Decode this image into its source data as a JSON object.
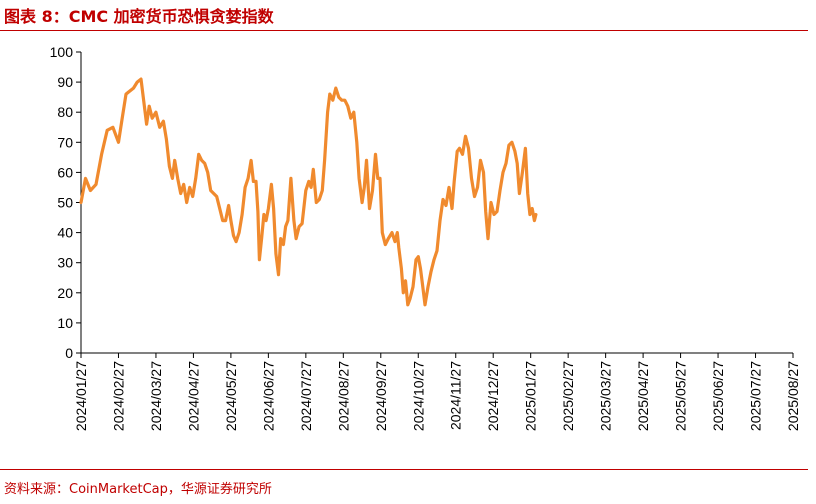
{
  "figure": {
    "title": "图表 8：CMC 加密货币恐惧贪婪指数",
    "source": "资料来源：CoinMarketCap，华源证券研究所"
  },
  "chart_data": {
    "type": "line",
    "title": "",
    "xlabel": "",
    "ylabel": "",
    "ylim": [
      0,
      100
    ],
    "yticks": [
      0,
      10,
      20,
      30,
      40,
      50,
      60,
      70,
      80,
      90,
      100
    ],
    "categories": [
      "2024/01/27",
      "2024/02/27",
      "2024/03/27",
      "2024/04/27",
      "2024/05/27",
      "2024/06/27",
      "2024/07/27",
      "2024/08/27",
      "2024/09/27",
      "2024/10/27",
      "2024/11/27",
      "2024/12/27",
      "2025/01/27",
      "2025/02/27",
      "2025/03/27",
      "2025/04/27",
      "2025/05/27",
      "2025/06/27",
      "2025/07/27",
      "2025/08/27"
    ],
    "grid": false,
    "legend": "none",
    "color": "#f08a2e",
    "series": [
      {
        "name": "",
        "points": [
          [
            0,
            50
          ],
          [
            0.12,
            58
          ],
          [
            0.25,
            54
          ],
          [
            0.4,
            56
          ],
          [
            0.55,
            66
          ],
          [
            0.7,
            74
          ],
          [
            0.85,
            75
          ],
          [
            1.0,
            70
          ],
          [
            1.1,
            78
          ],
          [
            1.2,
            86
          ],
          [
            1.3,
            87
          ],
          [
            1.4,
            88
          ],
          [
            1.5,
            90
          ],
          [
            1.6,
            91
          ],
          [
            1.68,
            83
          ],
          [
            1.75,
            76
          ],
          [
            1.82,
            82
          ],
          [
            1.9,
            78
          ],
          [
            2.0,
            80
          ],
          [
            2.1,
            75
          ],
          [
            2.2,
            77
          ],
          [
            2.28,
            71
          ],
          [
            2.36,
            62
          ],
          [
            2.44,
            58
          ],
          [
            2.5,
            64
          ],
          [
            2.58,
            58
          ],
          [
            2.66,
            53
          ],
          [
            2.74,
            56
          ],
          [
            2.82,
            50
          ],
          [
            2.9,
            55
          ],
          [
            2.98,
            52
          ],
          [
            3.06,
            58
          ],
          [
            3.14,
            66
          ],
          [
            3.22,
            64
          ],
          [
            3.3,
            63
          ],
          [
            3.38,
            60
          ],
          [
            3.46,
            54
          ],
          [
            3.54,
            53
          ],
          [
            3.62,
            52
          ],
          [
            3.7,
            48
          ],
          [
            3.78,
            44
          ],
          [
            3.86,
            44
          ],
          [
            3.94,
            49
          ],
          [
            4.0,
            44
          ],
          [
            4.07,
            39
          ],
          [
            4.14,
            37
          ],
          [
            4.22,
            40
          ],
          [
            4.3,
            46
          ],
          [
            4.38,
            55
          ],
          [
            4.46,
            58
          ],
          [
            4.54,
            64
          ],
          [
            4.6,
            57
          ],
          [
            4.67,
            57
          ],
          [
            4.72,
            47
          ],
          [
            4.76,
            31
          ],
          [
            4.82,
            38
          ],
          [
            4.88,
            46
          ],
          [
            4.94,
            44
          ],
          [
            5.0,
            48
          ],
          [
            5.08,
            56
          ],
          [
            5.14,
            48
          ],
          [
            5.2,
            33
          ],
          [
            5.27,
            26
          ],
          [
            5.33,
            38
          ],
          [
            5.4,
            36
          ],
          [
            5.46,
            42
          ],
          [
            5.52,
            44
          ],
          [
            5.6,
            58
          ],
          [
            5.68,
            44
          ],
          [
            5.74,
            38
          ],
          [
            5.82,
            42
          ],
          [
            5.9,
            43
          ],
          [
            6.0,
            54
          ],
          [
            6.08,
            57
          ],
          [
            6.14,
            55
          ],
          [
            6.2,
            61
          ],
          [
            6.28,
            50
          ],
          [
            6.36,
            51
          ],
          [
            6.44,
            54
          ],
          [
            6.5,
            64
          ],
          [
            6.58,
            80
          ],
          [
            6.64,
            86
          ],
          [
            6.72,
            84
          ],
          [
            6.8,
            88
          ],
          [
            6.88,
            85
          ],
          [
            6.96,
            84
          ],
          [
            7.04,
            84
          ],
          [
            7.12,
            82
          ],
          [
            7.2,
            78
          ],
          [
            7.28,
            80
          ],
          [
            7.36,
            70
          ],
          [
            7.42,
            58
          ],
          [
            7.5,
            50
          ],
          [
            7.56,
            55
          ],
          [
            7.62,
            64
          ],
          [
            7.7,
            48
          ],
          [
            7.78,
            54
          ],
          [
            7.86,
            66
          ],
          [
            7.92,
            58
          ],
          [
            7.98,
            58
          ],
          [
            8.04,
            40
          ],
          [
            8.12,
            36
          ],
          [
            8.2,
            38
          ],
          [
            8.3,
            40
          ],
          [
            8.38,
            37
          ],
          [
            8.44,
            40
          ],
          [
            8.48,
            35
          ],
          [
            8.55,
            28
          ],
          [
            8.6,
            20
          ],
          [
            8.66,
            24
          ],
          [
            8.72,
            16
          ],
          [
            8.78,
            18
          ],
          [
            8.86,
            22
          ],
          [
            8.94,
            31
          ],
          [
            9.0,
            32
          ],
          [
            9.06,
            28
          ],
          [
            9.12,
            22
          ],
          [
            9.18,
            16
          ],
          [
            9.26,
            22
          ],
          [
            9.34,
            27
          ],
          [
            9.42,
            31
          ],
          [
            9.5,
            34
          ],
          [
            9.58,
            44
          ],
          [
            9.66,
            51
          ],
          [
            9.74,
            49
          ],
          [
            9.82,
            55
          ],
          [
            9.9,
            48
          ],
          [
            9.96,
            57
          ],
          [
            10.04,
            67
          ],
          [
            10.1,
            68
          ],
          [
            10.18,
            66
          ],
          [
            10.26,
            72
          ],
          [
            10.34,
            68
          ],
          [
            10.42,
            58
          ],
          [
            10.5,
            52
          ],
          [
            10.58,
            55
          ],
          [
            10.66,
            64
          ],
          [
            10.74,
            60
          ],
          [
            10.8,
            47
          ],
          [
            10.86,
            38
          ],
          [
            10.94,
            50
          ],
          [
            11.02,
            46
          ],
          [
            11.1,
            47
          ],
          [
            11.18,
            54
          ],
          [
            11.26,
            60
          ],
          [
            11.34,
            63
          ],
          [
            11.42,
            69
          ],
          [
            11.5,
            70
          ],
          [
            11.58,
            67
          ],
          [
            11.64,
            63
          ],
          [
            11.7,
            53
          ],
          [
            11.78,
            60
          ],
          [
            11.86,
            68
          ],
          [
            11.92,
            53
          ],
          [
            11.98,
            46
          ],
          [
            12.04,
            48
          ],
          [
            12.1,
            44
          ],
          [
            12.14,
            46
          ]
        ]
      }
    ]
  }
}
